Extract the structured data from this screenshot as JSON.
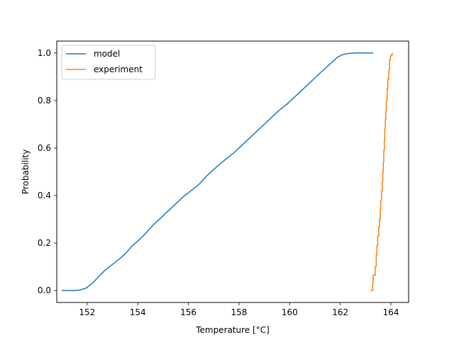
{
  "chart_data": {
    "type": "line",
    "title": "",
    "xlabel": "Temperature [°C]",
    "ylabel": "Probability",
    "xlim": [
      150.8,
      164.7
    ],
    "ylim": [
      -0.05,
      1.05
    ],
    "xticks": [
      152,
      154,
      156,
      158,
      160,
      162,
      164
    ],
    "yticks": [
      0.0,
      0.2,
      0.4,
      0.6,
      0.8,
      1.0
    ],
    "xtick_labels": [
      "152",
      "154",
      "156",
      "158",
      "160",
      "162",
      "164"
    ],
    "ytick_labels": [
      "0.0",
      "0.2",
      "0.4",
      "0.6",
      "0.8",
      "1.0"
    ],
    "grid": false,
    "legend": {
      "position": "top-left"
    },
    "series": [
      {
        "name": "model",
        "color": "#1f77b4",
        "style": "line",
        "x": [
          151.0,
          151.5,
          151.7,
          151.95,
          152.2,
          152.45,
          152.7,
          153.0,
          153.3,
          153.55,
          153.8,
          154.1,
          154.35,
          154.6,
          154.9,
          155.2,
          155.5,
          155.8,
          156.1,
          156.4,
          156.7,
          156.9,
          157.2,
          157.5,
          157.8,
          158.1,
          158.4,
          158.7,
          159.0,
          159.3,
          159.6,
          159.9,
          160.2,
          160.5,
          160.8,
          161.1,
          161.4,
          161.7,
          161.9,
          162.1,
          162.3,
          162.6,
          163.3
        ],
        "y": [
          0.0,
          0.0,
          0.002,
          0.01,
          0.03,
          0.058,
          0.085,
          0.11,
          0.135,
          0.16,
          0.19,
          0.218,
          0.245,
          0.275,
          0.305,
          0.335,
          0.365,
          0.395,
          0.42,
          0.445,
          0.48,
          0.5,
          0.528,
          0.555,
          0.58,
          0.61,
          0.64,
          0.67,
          0.7,
          0.73,
          0.76,
          0.785,
          0.815,
          0.845,
          0.875,
          0.905,
          0.935,
          0.963,
          0.983,
          0.993,
          0.998,
          1.0,
          1.0
        ]
      },
      {
        "name": "experiment",
        "color": "#ff7f0e",
        "style": "step",
        "x": [
          163.2,
          163.28,
          163.3,
          163.35,
          163.38,
          163.42,
          163.45,
          163.48,
          163.52,
          163.55,
          163.58,
          163.6,
          163.63,
          163.66,
          163.68,
          163.7,
          163.72,
          163.74,
          163.76,
          163.78,
          163.8,
          163.82,
          163.85,
          163.88,
          163.92,
          163.95,
          163.98,
          164.0,
          164.05
        ],
        "y": [
          0.0,
          0.035,
          0.065,
          0.065,
          0.1,
          0.15,
          0.19,
          0.23,
          0.27,
          0.3,
          0.34,
          0.38,
          0.42,
          0.46,
          0.5,
          0.54,
          0.59,
          0.63,
          0.68,
          0.72,
          0.76,
          0.8,
          0.85,
          0.89,
          0.93,
          0.97,
          0.985,
          0.99,
          1.0
        ]
      }
    ]
  }
}
